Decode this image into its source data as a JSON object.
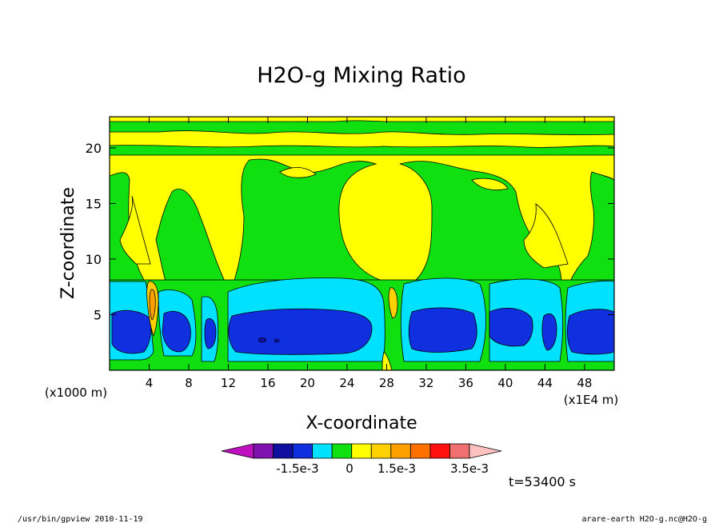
{
  "chart_data": {
    "type": "heatmap",
    "title": "H2O-g Mixing Ratio",
    "xlabel": "X-coordinate",
    "ylabel": "Z-coordinate",
    "x_unit": "(x1E4 m)",
    "y_unit": "(x1000 m)",
    "x_ticks": [
      4,
      8,
      12,
      16,
      20,
      24,
      28,
      32,
      36,
      40,
      44,
      48
    ],
    "y_ticks": [
      5,
      10,
      15,
      20
    ],
    "xlim": [
      0,
      51
    ],
    "ylim": [
      0,
      22.8
    ],
    "colorbar": {
      "colors": [
        "#c010c0",
        "#8010b0",
        "#1010a0",
        "#1030e0",
        "#00e0ff",
        "#10e010",
        "#ffff00",
        "#ffd000",
        "#ffa000",
        "#ff7000",
        "#ff1010",
        "#f07070",
        "#ffc0c0"
      ],
      "labels": [
        "-1.5e-3",
        "0",
        "1.5e-3",
        "3.5e-3"
      ]
    },
    "time_label": "t=53400 s"
  },
  "footer": {
    "left": "/usr/bin/gpview   2010-11-19",
    "right": "arare-earth_H2O-g.nc@H2O-g"
  }
}
